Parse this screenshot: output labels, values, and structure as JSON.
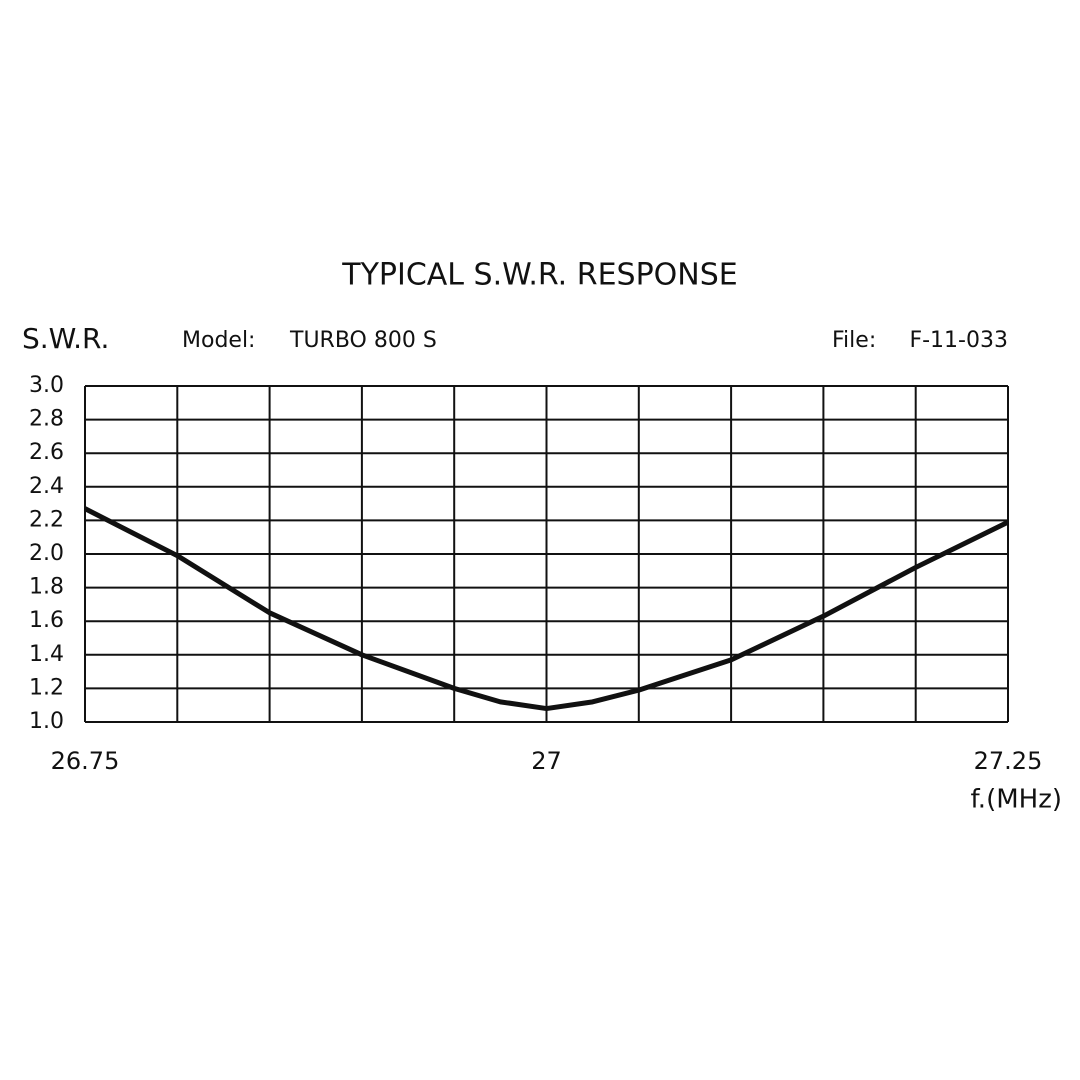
{
  "chart_data": {
    "type": "line",
    "title": "TYPICAL S.W.R. RESPONSE",
    "ylabel": "S.W.R.",
    "model_label": "Model:",
    "model": "TURBO 800 S",
    "file_label": "File:",
    "file": "F-11-033",
    "xlabel": "f.(MHz)",
    "x": [
      26.75,
      26.8,
      26.85,
      26.9,
      26.95,
      26.975,
      27.0,
      27.025,
      27.05,
      27.1,
      27.15,
      27.2,
      27.25
    ],
    "series": [
      {
        "color": "#111111",
        "values": [
          2.27,
          1.99,
          1.65,
          1.4,
          1.2,
          1.12,
          1.08,
          1.12,
          1.19,
          1.37,
          1.63,
          1.92,
          2.19
        ]
      }
    ],
    "xlim": [
      26.75,
      27.25
    ],
    "xticks": [
      26.75,
      {
        "value": 26.8,
        "label": null
      },
      {
        "value": 26.85,
        "label": null
      },
      {
        "value": 26.9,
        "label": null
      },
      {
        "value": 26.95,
        "label": null
      },
      27,
      {
        "value": 27.05,
        "label": null
      },
      {
        "value": 27.1,
        "label": null
      },
      {
        "value": 27.15,
        "label": null
      },
      {
        "value": 27.2,
        "label": null
      },
      27.25
    ],
    "ylim": [
      1,
      3
    ],
    "yticks": [
      {
        "value": 1,
        "label": "1.0"
      },
      1.2,
      1.4,
      1.6,
      1.8,
      {
        "value": 2,
        "label": "2.0"
      },
      2.2,
      2.4,
      2.6,
      2.8,
      {
        "value": 3,
        "label": "3.0"
      }
    ],
    "grid": true
  }
}
